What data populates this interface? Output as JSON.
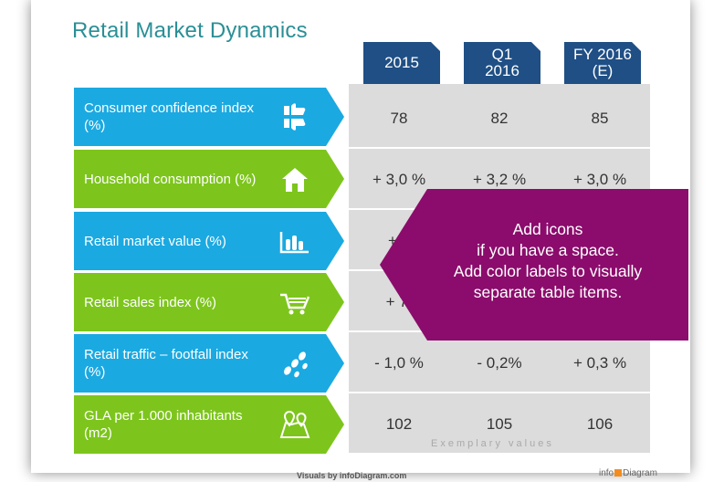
{
  "title": "Retail Market Dynamics",
  "columns": [
    "2015",
    "Q1\n2016",
    "FY 2016\n(E)"
  ],
  "rows": [
    {
      "label": "Consumer confidence index (%)",
      "icon": "thumbs-icon",
      "color": "#1ba9e1",
      "values": [
        "78",
        "82",
        "85"
      ]
    },
    {
      "label": "Household consumption (%)",
      "icon": "house-icon",
      "color": "#7dc51c",
      "values": [
        "+ 3,0 %",
        "+ 3,2 %",
        "+ 3,0 %"
      ]
    },
    {
      "label": "Retail market value (%)",
      "icon": "bar-chart-icon",
      "color": "#1ba9e1",
      "values": [
        "+ 6",
        "",
        ""
      ]
    },
    {
      "label": "Retail sales index (%)",
      "icon": "shopping-cart-icon",
      "color": "#7dc51c",
      "values": [
        "+ 7,",
        "",
        ""
      ]
    },
    {
      "label": "Retail traffic – footfall index (%)",
      "icon": "footsteps-icon",
      "color": "#1ba9e1",
      "values": [
        "- 1,0 %",
        "- 0,2%",
        "+ 0,3 %"
      ]
    },
    {
      "label": "GLA per 1.000 inhabitants (m2)",
      "icon": "map-pins-icon",
      "color": "#7dc51c",
      "values": [
        "102",
        "105",
        "106"
      ]
    }
  ],
  "callout": {
    "lines": [
      "Add icons",
      "if you have a space.",
      "Add color labels to visually",
      "separate table items."
    ],
    "color": "#8b0c6c"
  },
  "note": "Exemplary values",
  "footer": "Visuals by infoDiagram.com",
  "brand": {
    "left": "info",
    "right": "Diagram"
  },
  "colors": {
    "title": "#2a8f96",
    "header": "#1f4f85",
    "blue": "#1ba9e1",
    "green": "#7dc51c",
    "grid": "#dcdcdc"
  }
}
